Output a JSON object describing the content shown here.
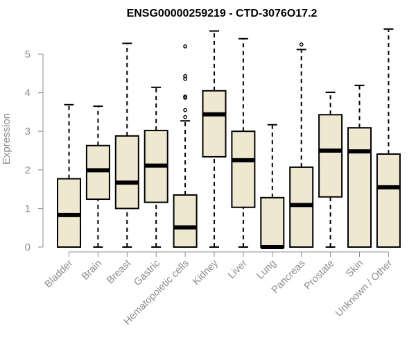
{
  "chart_data": {
    "type": "box",
    "title": "ENSG00000259219 - CTD-3076O17.2",
    "xlabel": "",
    "ylabel": "Expression",
    "ylim": [
      0,
      5.6
    ],
    "yticks": [
      0,
      1,
      2,
      3,
      4,
      5
    ],
    "box_fill": "#efe8d0",
    "categories": [
      "Bladder",
      "Brain",
      "Breast",
      "Gastric",
      "Hematopoietic cells",
      "Kidney",
      "Liver",
      "Lung",
      "Pancreas",
      "Prostate",
      "Skin",
      "Unknown / Other"
    ],
    "boxes": [
      {
        "min": 0,
        "q1": 0,
        "median": 0.83,
        "q3": 1.77,
        "max": 3.69,
        "outliers": []
      },
      {
        "min": 0,
        "q1": 1.24,
        "median": 1.99,
        "q3": 2.63,
        "max": 3.65,
        "outliers": []
      },
      {
        "min": 0,
        "q1": 1.0,
        "median": 1.67,
        "q3": 2.88,
        "max": 5.28,
        "outliers": []
      },
      {
        "min": 0,
        "q1": 1.16,
        "median": 2.11,
        "q3": 3.02,
        "max": 4.14,
        "outliers": []
      },
      {
        "min": 0,
        "q1": 0,
        "median": 0.51,
        "q3": 1.35,
        "max": 3.27,
        "outliers": [
          3.37,
          3.55,
          3.87,
          3.9,
          4.36,
          4.43,
          5.2
        ]
      },
      {
        "min": 0,
        "q1": 2.34,
        "median": 3.44,
        "q3": 4.05,
        "max": 5.6,
        "outliers": []
      },
      {
        "min": 0,
        "q1": 1.03,
        "median": 2.25,
        "q3": 3.0,
        "max": 5.4,
        "outliers": []
      },
      {
        "min": 0,
        "q1": 0,
        "median": 0,
        "q3": 1.28,
        "max": 3.17,
        "outliers": []
      },
      {
        "min": 0,
        "q1": 0,
        "median": 1.09,
        "q3": 2.07,
        "max": 5.12,
        "outliers": [
          5.25
        ]
      },
      {
        "min": 0,
        "q1": 1.3,
        "median": 2.5,
        "q3": 3.43,
        "max": 4.01,
        "outliers": []
      },
      {
        "min": 0,
        "q1": 0,
        "median": 2.48,
        "q3": 3.09,
        "max": 4.19,
        "outliers": []
      },
      {
        "min": 0,
        "q1": 0,
        "median": 1.55,
        "q3": 2.41,
        "max": 5.65,
        "outliers": []
      }
    ]
  }
}
